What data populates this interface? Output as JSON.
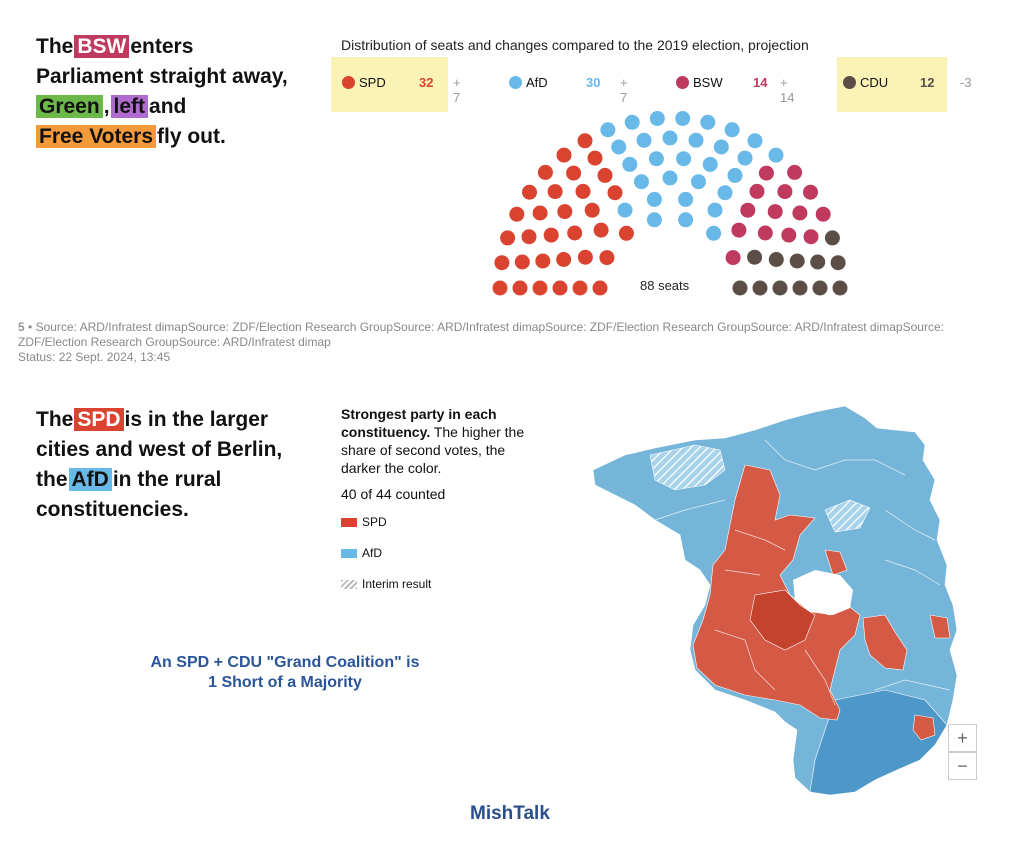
{
  "headline1": {
    "pre": "The",
    "tag1": "BSW",
    "post1": "enters",
    "line2": "Parliament straight away,",
    "tag2": "Green",
    "comma": ",",
    "tag3": "left",
    "and": "and",
    "tag4": "Free Voters",
    "post4": "fly out.",
    "colors": {
      "bsw": "#c0395f",
      "green": "#6cb94a",
      "left": "#b06ad0",
      "free_voters": "#f49a3a"
    }
  },
  "seat_chart": {
    "title": "Distribution of seats and changes compared to the 2019 election, projection",
    "total_label": "88 seats",
    "parties": [
      {
        "name": "SPD",
        "seats": "32",
        "change": "+ 7",
        "color": "#d9432f",
        "highlight": true
      },
      {
        "name": "AfD",
        "seats": "30",
        "change": "+ 7",
        "color": "#68b8e8",
        "highlight": false
      },
      {
        "name": "BSW",
        "seats": "14",
        "change": "+ 14",
        "color": "#c0395f",
        "highlight": false
      },
      {
        "name": "CDU",
        "seats": "12",
        "change": "-3",
        "color": "#5a4e47",
        "highlight": true
      }
    ]
  },
  "source": {
    "icon": "5",
    "line1": "Source: ARD/Infratest dimapSource: ZDF/Election Research GroupSource: ARD/Infratest dimapSource: ZDF/Election Research GroupSource: ARD/Infratest dimapSource:",
    "line2": "ZDF/Election Research GroupSource: ARD/Infratest dimap",
    "status": "Status: 22 Sept. 2024, 13:45"
  },
  "headline2": {
    "pre": "The",
    "tag1": "SPD",
    "post1": "is in the larger",
    "line2": "cities and west of Berlin,",
    "pre3": "the",
    "tag2": "AfD",
    "post3": "in the rural",
    "line4": "constituencies.",
    "colors": {
      "spd": "#d9432f",
      "afd": "#68b8e8"
    }
  },
  "map_legend": {
    "title_bold": "Strongest party in each constituency.",
    "title_rest": "The higher the share of second votes, the darker the color.",
    "counted": "40 of 44 counted",
    "items": [
      {
        "label": "SPD",
        "color": "#d9432f"
      },
      {
        "label": "AfD",
        "color": "#68b8e8"
      },
      {
        "label": "Interim result",
        "color": "#cccccc"
      }
    ]
  },
  "coalition_note": {
    "line1": "An SPD + CDU \"Grand Coalition\" is",
    "line2": "1 Short of a Majority"
  },
  "zoom": {
    "in": "+",
    "out": "−"
  },
  "brand": "MishTalk"
}
